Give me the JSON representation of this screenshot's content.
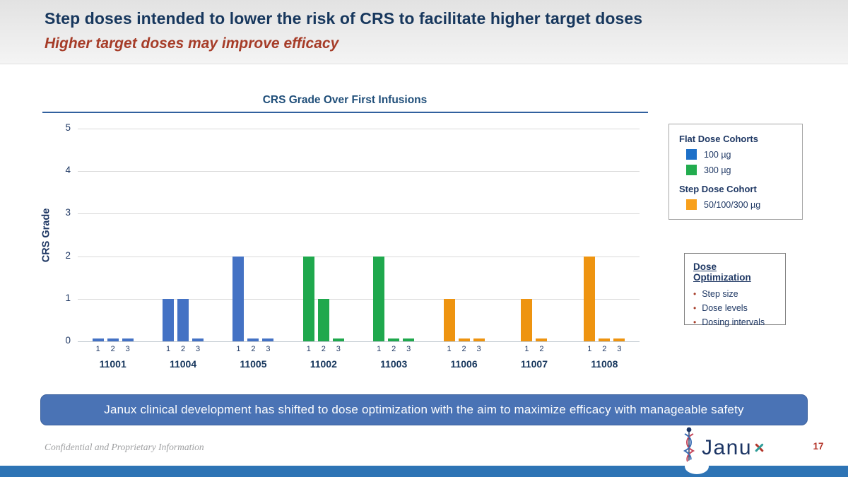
{
  "slide": {
    "title": "Step doses intended to lower the risk of CRS to facilitate higher target doses",
    "subtitle": "Higher target doses may improve efficacy",
    "banner": "Janux clinical development has shifted to dose optimization with the aim to maximize efficacy with manageable safety",
    "footer_note": "Confidential and Proprietary Information",
    "page_number": "17",
    "logo_text": "Janux"
  },
  "colors": {
    "blue": "#4472C4",
    "green": "#1FA84D",
    "orange": "#EE9410",
    "legend_blue": "#1D70C8",
    "legend_green": "#22AC4E",
    "legend_orange": "#F8A01C"
  },
  "chart_data": {
    "type": "bar",
    "title": "CRS Grade Over First Infusions",
    "xlabel": "",
    "ylabel": "CRS Grade",
    "ylim": [
      0,
      5
    ],
    "yticks": [
      0,
      1,
      2,
      3,
      4,
      5
    ],
    "grid": true,
    "legend_position": "right",
    "groups": [
      {
        "label": "11001",
        "series": "100 µg",
        "color_key": "blue",
        "infusions": [
          "1",
          "2",
          "3"
        ],
        "values": [
          0,
          0,
          0
        ]
      },
      {
        "label": "11004",
        "series": "100 µg",
        "color_key": "blue",
        "infusions": [
          "1",
          "2",
          "3"
        ],
        "values": [
          1,
          1,
          0
        ]
      },
      {
        "label": "11005",
        "series": "100 µg",
        "color_key": "blue",
        "infusions": [
          "1",
          "2",
          "3"
        ],
        "values": [
          2,
          0,
          0
        ]
      },
      {
        "label": "11002",
        "series": "300 µg",
        "color_key": "green",
        "infusions": [
          "1",
          "2",
          "3"
        ],
        "values": [
          2,
          1,
          0
        ]
      },
      {
        "label": "11003",
        "series": "300 µg",
        "color_key": "green",
        "infusions": [
          "1",
          "2",
          "3"
        ],
        "values": [
          2,
          0,
          0
        ]
      },
      {
        "label": "11006",
        "series": "50/100/300 µg",
        "color_key": "orange",
        "infusions": [
          "1",
          "2",
          "3"
        ],
        "values": [
          1,
          0,
          0
        ]
      },
      {
        "label": "11007",
        "series": "50/100/300 µg",
        "color_key": "orange",
        "infusions": [
          "1",
          "2"
        ],
        "values": [
          1,
          0
        ]
      },
      {
        "label": "11008",
        "series": "50/100/300 µg",
        "color_key": "orange",
        "infusions": [
          "1",
          "2",
          "3"
        ],
        "values": [
          2,
          0,
          0
        ]
      }
    ],
    "legend": {
      "sections": [
        {
          "header": "Flat Dose Cohorts",
          "items": [
            {
              "label": "100 µg",
              "color_key": "legend_blue"
            },
            {
              "label": "300 µg",
              "color_key": "legend_green"
            }
          ]
        },
        {
          "header": "Step Dose Cohort",
          "items": [
            {
              "label": "50/100/300 µg",
              "color_key": "legend_orange"
            }
          ]
        }
      ]
    }
  },
  "dose_optimization": {
    "title": "Dose Optimization",
    "bullets": [
      "Step size",
      "Dose levels",
      "Dosing intervals"
    ]
  }
}
